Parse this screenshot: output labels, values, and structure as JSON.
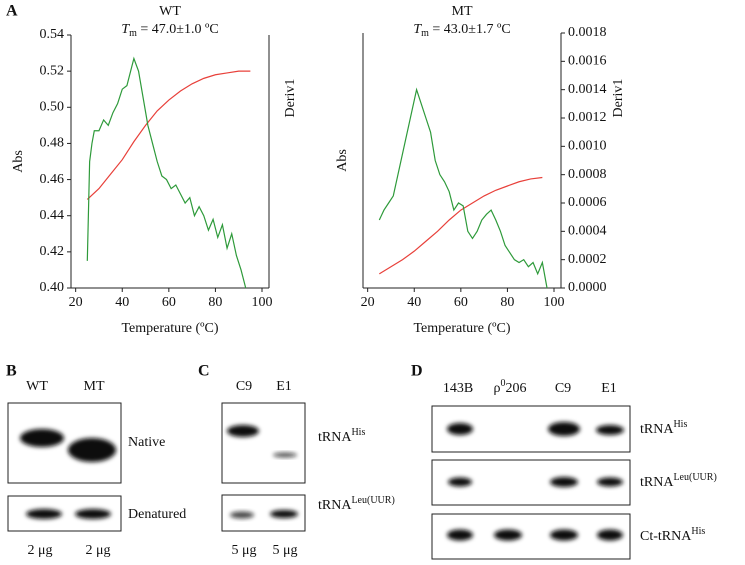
{
  "panel_labels": [
    "A",
    "B",
    "C",
    "D"
  ],
  "chart_data": [
    {
      "type": "line",
      "title": "WT",
      "subtitle": {
        "symbol": "T",
        "subscript": "m",
        "text": " = 47.0±1.0 ºC"
      },
      "xlabel": "Temperature (ºC)",
      "ylabel": "Abs",
      "y2label": "Deriv1",
      "xlim": [
        18,
        103
      ],
      "xticks": [
        20,
        40,
        60,
        80,
        100
      ],
      "ylim": [
        0.4,
        0.54
      ],
      "yticks": [
        {
          "value": 0.4,
          "label": "0.40"
        },
        {
          "value": 0.42,
          "label": "0.42"
        },
        {
          "value": 0.44,
          "label": "0.44"
        },
        {
          "value": 0.46,
          "label": "0.46"
        },
        {
          "value": 0.48,
          "label": "0.48"
        },
        {
          "value": 0.5,
          "label": "0.50"
        },
        {
          "value": 0.52,
          "label": "0.52"
        },
        {
          "value": 0.54,
          "label": "0.54"
        }
      ],
      "series": [
        {
          "color": "#e8403a",
          "x": [
            25,
            30,
            35,
            40,
            45,
            50,
            55,
            60,
            65,
            70,
            75,
            80,
            85,
            90,
            95
          ],
          "values": [
            0.449,
            0.455,
            0.463,
            0.471,
            0.481,
            0.49,
            0.498,
            0.504,
            0.509,
            0.513,
            0.516,
            0.518,
            0.519,
            0.52,
            0.52
          ]
        },
        {
          "color": "#2e9a3a",
          "x": [
            25,
            26,
            27,
            28,
            30,
            32,
            34,
            36,
            38,
            40,
            42,
            44,
            45,
            47,
            49,
            51,
            53,
            55,
            57,
            59,
            61,
            63,
            65,
            67,
            69,
            71,
            73,
            75,
            77,
            79,
            81,
            83,
            85,
            87,
            89,
            91,
            93
          ],
          "values": [
            0.415,
            0.47,
            0.48,
            0.487,
            0.487,
            0.493,
            0.49,
            0.497,
            0.502,
            0.51,
            0.512,
            0.522,
            0.527,
            0.52,
            0.505,
            0.49,
            0.48,
            0.47,
            0.462,
            0.46,
            0.455,
            0.457,
            0.452,
            0.447,
            0.45,
            0.44,
            0.445,
            0.44,
            0.432,
            0.438,
            0.428,
            0.435,
            0.422,
            0.43,
            0.418,
            0.41,
            0.4
          ]
        }
      ]
    },
    {
      "type": "line",
      "title": "MT",
      "subtitle": {
        "symbol": "T",
        "subscript": "m",
        "text": " = 43.0±1.7 ºC"
      },
      "xlabel": "Temperature (ºC)",
      "ylabel": "Abs",
      "y2label": "Deriv1",
      "xlim": [
        18,
        103
      ],
      "xticks": [
        20,
        40,
        60,
        80,
        100
      ],
      "y2lim": [
        0,
        0.0018
      ],
      "y2ticks": [
        {
          "value": 0,
          "label": "0.0000"
        },
        {
          "value": 0.0002,
          "label": "0.0002"
        },
        {
          "value": 0.0004,
          "label": "0.0004"
        },
        {
          "value": 0.0006,
          "label": "0.0006"
        },
        {
          "value": 0.0008,
          "label": "0.0008"
        },
        {
          "value": 0.001,
          "label": "0.0010"
        },
        {
          "value": 0.0012,
          "label": "0.0012"
        },
        {
          "value": 0.0014,
          "label": "0.0014"
        },
        {
          "value": 0.0016,
          "label": "0.0016"
        },
        {
          "value": 0.0018,
          "label": "0.0018"
        }
      ],
      "series": [
        {
          "color": "#e8403a",
          "axis": "y2",
          "x": [
            25,
            30,
            35,
            40,
            45,
            50,
            55,
            60,
            65,
            70,
            75,
            80,
            85,
            90,
            95
          ],
          "values": [
            0.0001,
            0.00015,
            0.0002,
            0.00026,
            0.00033,
            0.0004,
            0.00048,
            0.00055,
            0.0006,
            0.00065,
            0.00069,
            0.00072,
            0.00075,
            0.00077,
            0.00078
          ]
        },
        {
          "color": "#2e9a3a",
          "axis": "y2",
          "x": [
            25,
            27,
            29,
            31,
            33,
            35,
            37,
            39,
            41,
            43,
            45,
            47,
            49,
            51,
            53,
            55,
            57,
            59,
            61,
            63,
            65,
            67,
            69,
            71,
            73,
            75,
            77,
            79,
            81,
            83,
            85,
            87,
            89,
            91,
            93,
            95,
            97
          ],
          "values": [
            0.00048,
            0.00055,
            0.0006,
            0.00065,
            0.0008,
            0.00095,
            0.0011,
            0.00125,
            0.0014,
            0.0013,
            0.0012,
            0.0011,
            0.0009,
            0.0008,
            0.00075,
            0.00068,
            0.00055,
            0.0006,
            0.00058,
            0.0004,
            0.00035,
            0.0004,
            0.00048,
            0.00052,
            0.00055,
            0.00048,
            0.0004,
            0.0003,
            0.00025,
            0.0002,
            0.00018,
            0.0002,
            0.00015,
            0.00018,
            0.0001,
            0.00018,
            0
          ]
        }
      ]
    }
  ],
  "blots": {
    "B": {
      "lanes": [
        "WT",
        "MT"
      ],
      "rows": [
        "Native",
        "Denatured"
      ],
      "loads": [
        "2 μg",
        "2 μg"
      ]
    },
    "C": {
      "lanes": [
        "C9",
        "E1"
      ],
      "rows": [
        {
          "base": "tRNA",
          "sup": "His"
        },
        {
          "base": "tRNA",
          "sup": "Leu(UUR)"
        }
      ],
      "loads": [
        "5 μg",
        "5 μg"
      ]
    },
    "D": {
      "lanes": [
        "143B",
        {
          "base": "ρ",
          "sup": "0",
          "rest": "206"
        },
        "C9",
        "E1"
      ],
      "rows": [
        {
          "base": "tRNA",
          "sup": "His"
        },
        {
          "base": "tRNA",
          "sup": "Leu(UUR)"
        },
        {
          "base": "Ct-tRNA",
          "sup": "His"
        }
      ]
    }
  }
}
